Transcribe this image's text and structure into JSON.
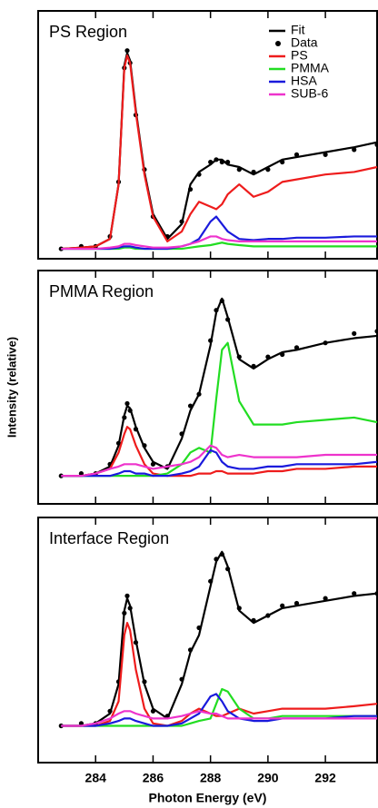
{
  "chart_data": [
    {
      "type": "line",
      "title": "PS Region",
      "legend": "upper right",
      "xlim": [
        282,
        293.8
      ],
      "ylim": [
        0,
        1
      ],
      "xticks": [
        284,
        286,
        288,
        290,
        292
      ],
      "x": [
        282.8,
        283.5,
        284,
        284.5,
        284.8,
        285,
        285.1,
        285.2,
        285.4,
        285.7,
        286,
        286.5,
        287,
        287.3,
        287.6,
        288,
        288.2,
        288.4,
        288.6,
        289,
        289.5,
        290,
        290.5,
        291,
        292,
        293,
        293.8
      ],
      "series": [
        {
          "name": "Fit",
          "color": "#000000",
          "style": "line",
          "values": [
            0.04,
            0.045,
            0.05,
            0.08,
            0.3,
            0.78,
            0.83,
            0.8,
            0.6,
            0.35,
            0.18,
            0.08,
            0.14,
            0.3,
            0.35,
            0.38,
            0.4,
            0.4,
            0.38,
            0.37,
            0.34,
            0.37,
            0.4,
            0.41,
            0.43,
            0.45,
            0.47
          ]
        },
        {
          "name": "Data",
          "color": "#000000",
          "style": "markers",
          "values": [
            0.04,
            0.05,
            0.05,
            0.09,
            0.31,
            0.77,
            0.84,
            0.79,
            0.58,
            0.36,
            0.17,
            0.09,
            0.15,
            0.28,
            0.34,
            0.39,
            0.4,
            0.39,
            0.39,
            0.36,
            0.35,
            0.36,
            0.39,
            0.42,
            0.42,
            0.44,
            0.46
          ]
        },
        {
          "name": "PS",
          "color": "#ee1c1c",
          "style": "line",
          "values": [
            0.04,
            0.045,
            0.05,
            0.08,
            0.3,
            0.77,
            0.82,
            0.79,
            0.59,
            0.34,
            0.17,
            0.07,
            0.11,
            0.18,
            0.23,
            0.21,
            0.2,
            0.22,
            0.26,
            0.3,
            0.25,
            0.27,
            0.31,
            0.32,
            0.34,
            0.35,
            0.37
          ]
        },
        {
          "name": "PMMA",
          "color": "#22dd22",
          "style": "line",
          "values": [
            0.04,
            0.04,
            0.04,
            0.04,
            0.04,
            0.045,
            0.045,
            0.045,
            0.04,
            0.04,
            0.04,
            0.04,
            0.04,
            0.045,
            0.05,
            0.055,
            0.06,
            0.065,
            0.06,
            0.055,
            0.05,
            0.05,
            0.05,
            0.05,
            0.05,
            0.05,
            0.05
          ]
        },
        {
          "name": "HSA",
          "color": "#1a1adc",
          "style": "line",
          "values": [
            0.04,
            0.04,
            0.04,
            0.04,
            0.045,
            0.05,
            0.05,
            0.05,
            0.045,
            0.04,
            0.04,
            0.04,
            0.05,
            0.06,
            0.08,
            0.15,
            0.17,
            0.14,
            0.11,
            0.08,
            0.075,
            0.08,
            0.08,
            0.085,
            0.085,
            0.09,
            0.09
          ]
        },
        {
          "name": "SUB-6",
          "color": "#ee33cc",
          "style": "line",
          "values": [
            0.04,
            0.04,
            0.04,
            0.045,
            0.05,
            0.06,
            0.06,
            0.06,
            0.055,
            0.05,
            0.045,
            0.045,
            0.05,
            0.06,
            0.07,
            0.09,
            0.09,
            0.08,
            0.075,
            0.07,
            0.07,
            0.07,
            0.07,
            0.07,
            0.07,
            0.07,
            0.07
          ]
        }
      ]
    },
    {
      "type": "line",
      "title": "PMMA Region",
      "y_label": "Intensity (relative)",
      "xlim": [
        282,
        293.8
      ],
      "ylim": [
        0,
        1
      ],
      "xticks": [
        284,
        286,
        288,
        290,
        292
      ],
      "x": [
        282.8,
        283.5,
        284,
        284.5,
        284.8,
        285,
        285.1,
        285.2,
        285.4,
        285.7,
        286,
        286.5,
        287,
        287.3,
        287.6,
        288,
        288.2,
        288.4,
        288.6,
        289,
        289.5,
        290,
        290.5,
        291,
        292,
        293,
        293.8
      ],
      "series": [
        {
          "color": "#000000",
          "style": "line",
          "values": [
            0.12,
            0.12,
            0.13,
            0.16,
            0.25,
            0.38,
            0.42,
            0.41,
            0.33,
            0.24,
            0.18,
            0.15,
            0.28,
            0.4,
            0.47,
            0.68,
            0.82,
            0.88,
            0.8,
            0.62,
            0.58,
            0.62,
            0.65,
            0.66,
            0.69,
            0.71,
            0.72
          ]
        },
        {
          "color": "#000000",
          "style": "markers",
          "values": [
            0.12,
            0.13,
            0.13,
            0.17,
            0.26,
            0.37,
            0.43,
            0.4,
            0.32,
            0.25,
            0.17,
            0.16,
            0.3,
            0.42,
            0.47,
            0.7,
            0.83,
            0.87,
            0.79,
            0.63,
            0.59,
            0.63,
            0.64,
            0.67,
            0.69,
            0.73,
            0.74
          ]
        },
        {
          "color": "#ee1c1c",
          "style": "line",
          "values": [
            0.12,
            0.12,
            0.13,
            0.15,
            0.22,
            0.3,
            0.33,
            0.32,
            0.25,
            0.17,
            0.13,
            0.12,
            0.12,
            0.12,
            0.13,
            0.13,
            0.14,
            0.14,
            0.13,
            0.13,
            0.13,
            0.14,
            0.14,
            0.15,
            0.15,
            0.16,
            0.16
          ]
        },
        {
          "color": "#22dd22",
          "style": "line",
          "values": [
            0.12,
            0.12,
            0.12,
            0.12,
            0.12,
            0.12,
            0.12,
            0.12,
            0.12,
            0.12,
            0.12,
            0.13,
            0.17,
            0.22,
            0.24,
            0.22,
            0.45,
            0.66,
            0.69,
            0.44,
            0.34,
            0.34,
            0.34,
            0.35,
            0.36,
            0.37,
            0.35
          ]
        },
        {
          "color": "#1a1adc",
          "style": "line",
          "values": [
            0.12,
            0.12,
            0.12,
            0.12,
            0.13,
            0.14,
            0.14,
            0.14,
            0.13,
            0.13,
            0.12,
            0.12,
            0.13,
            0.14,
            0.16,
            0.23,
            0.22,
            0.18,
            0.16,
            0.15,
            0.15,
            0.16,
            0.16,
            0.17,
            0.17,
            0.17,
            0.18
          ]
        },
        {
          "color": "#ee33cc",
          "style": "line",
          "values": [
            0.12,
            0.12,
            0.13,
            0.15,
            0.16,
            0.17,
            0.17,
            0.17,
            0.17,
            0.16,
            0.15,
            0.16,
            0.17,
            0.18,
            0.2,
            0.25,
            0.24,
            0.21,
            0.2,
            0.21,
            0.2,
            0.2,
            0.2,
            0.2,
            0.21,
            0.21,
            0.21
          ]
        }
      ]
    },
    {
      "type": "line",
      "title": "Interface Region",
      "x_label": "Photon Energy (eV)",
      "xlim": [
        282,
        293.8
      ],
      "ylim": [
        0,
        1
      ],
      "xticks": [
        284,
        286,
        288,
        290,
        292
      ],
      "x": [
        282.8,
        283.5,
        284,
        284.5,
        284.8,
        285,
        285.1,
        285.2,
        285.4,
        285.7,
        286,
        286.5,
        287,
        287.3,
        287.6,
        288,
        288.2,
        288.4,
        288.6,
        289,
        289.5,
        290,
        290.5,
        291,
        292,
        293,
        293.8
      ],
      "series": [
        {
          "color": "#000000",
          "style": "line",
          "values": [
            0.15,
            0.15,
            0.16,
            0.2,
            0.32,
            0.62,
            0.67,
            0.64,
            0.5,
            0.32,
            0.22,
            0.18,
            0.32,
            0.45,
            0.52,
            0.72,
            0.82,
            0.86,
            0.8,
            0.62,
            0.57,
            0.6,
            0.63,
            0.64,
            0.66,
            0.68,
            0.69
          ]
        },
        {
          "color": "#000000",
          "style": "markers",
          "values": [
            0.15,
            0.16,
            0.16,
            0.21,
            0.33,
            0.61,
            0.68,
            0.63,
            0.49,
            0.33,
            0.21,
            0.19,
            0.34,
            0.46,
            0.55,
            0.74,
            0.83,
            0.85,
            0.79,
            0.63,
            0.58,
            0.6,
            0.64,
            0.65,
            0.67,
            0.69,
            0.69
          ]
        },
        {
          "color": "#ee1c1c",
          "style": "line",
          "values": [
            0.15,
            0.15,
            0.15,
            0.17,
            0.25,
            0.52,
            0.57,
            0.54,
            0.38,
            0.22,
            0.16,
            0.15,
            0.17,
            0.2,
            0.22,
            0.2,
            0.19,
            0.19,
            0.2,
            0.22,
            0.2,
            0.21,
            0.22,
            0.22,
            0.22,
            0.23,
            0.24
          ]
        },
        {
          "color": "#22dd22",
          "style": "line",
          "values": [
            0.15,
            0.15,
            0.15,
            0.15,
            0.15,
            0.15,
            0.15,
            0.15,
            0.15,
            0.15,
            0.15,
            0.15,
            0.15,
            0.16,
            0.17,
            0.18,
            0.24,
            0.3,
            0.29,
            0.22,
            0.18,
            0.18,
            0.19,
            0.19,
            0.19,
            0.19,
            0.19
          ]
        },
        {
          "color": "#1a1adc",
          "style": "line",
          "values": [
            0.15,
            0.15,
            0.15,
            0.16,
            0.17,
            0.18,
            0.18,
            0.18,
            0.17,
            0.16,
            0.15,
            0.15,
            0.16,
            0.18,
            0.2,
            0.27,
            0.28,
            0.25,
            0.21,
            0.18,
            0.17,
            0.17,
            0.18,
            0.18,
            0.18,
            0.19,
            0.19
          ]
        },
        {
          "color": "#ee33cc",
          "style": "line",
          "values": [
            0.15,
            0.15,
            0.16,
            0.18,
            0.2,
            0.21,
            0.21,
            0.21,
            0.2,
            0.19,
            0.18,
            0.18,
            0.19,
            0.2,
            0.21,
            0.2,
            0.2,
            0.19,
            0.18,
            0.18,
            0.18,
            0.18,
            0.18,
            0.18,
            0.18,
            0.18,
            0.18
          ]
        }
      ]
    }
  ]
}
